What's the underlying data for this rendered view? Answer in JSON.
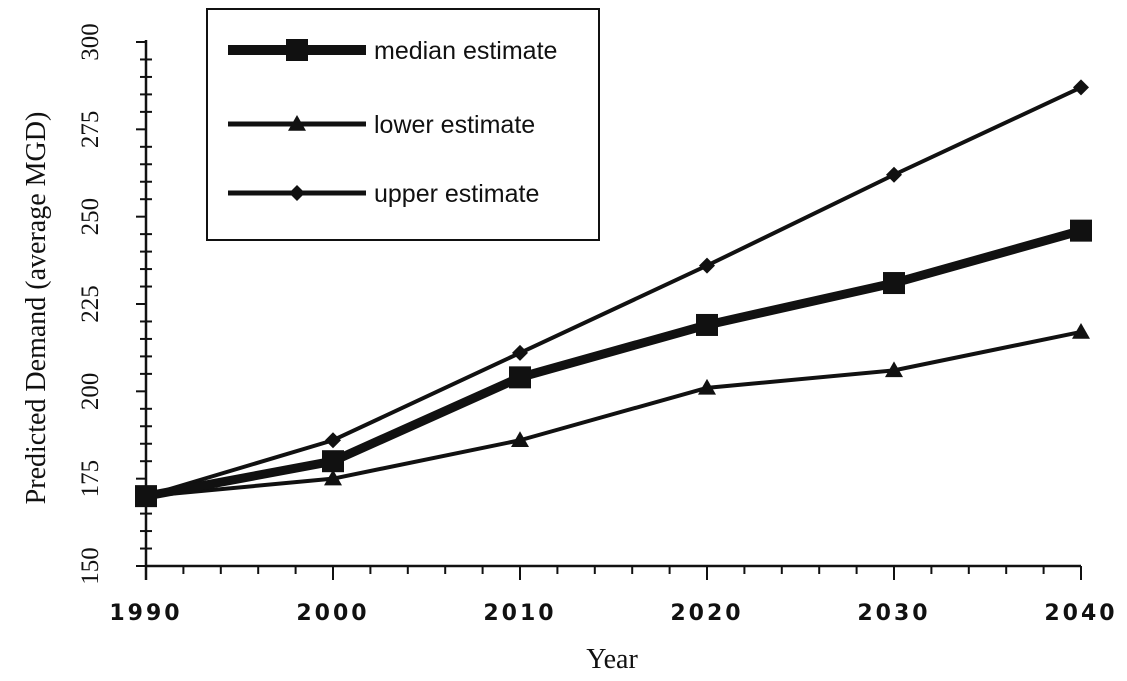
{
  "chart_data": {
    "type": "line",
    "title": "",
    "xlabel": "Year",
    "ylabel": "Predicted Demand (average MGD)",
    "x": [
      1990,
      2000,
      2010,
      2020,
      2030,
      2040
    ],
    "xlim": [
      1990,
      2040
    ],
    "ylim": [
      150,
      300
    ],
    "x_ticks": [
      1990,
      2000,
      2010,
      2020,
      2030,
      2040
    ],
    "y_ticks": [
      150,
      175,
      200,
      225,
      250,
      275,
      300
    ],
    "grid": false,
    "legend_position": "top-left",
    "series": [
      {
        "name": "median estimate",
        "marker": "square",
        "line_weight": "heavy",
        "color": "#111111",
        "values": [
          170,
          180,
          204,
          219,
          231,
          246
        ]
      },
      {
        "name": "lower estimate",
        "marker": "triangle",
        "line_weight": "normal",
        "color": "#111111",
        "values": [
          170,
          175,
          186,
          201,
          206,
          217
        ]
      },
      {
        "name": "upper estimate",
        "marker": "diamond",
        "line_weight": "normal",
        "color": "#111111",
        "values": [
          170,
          186,
          211,
          236,
          262,
          287
        ]
      }
    ]
  }
}
